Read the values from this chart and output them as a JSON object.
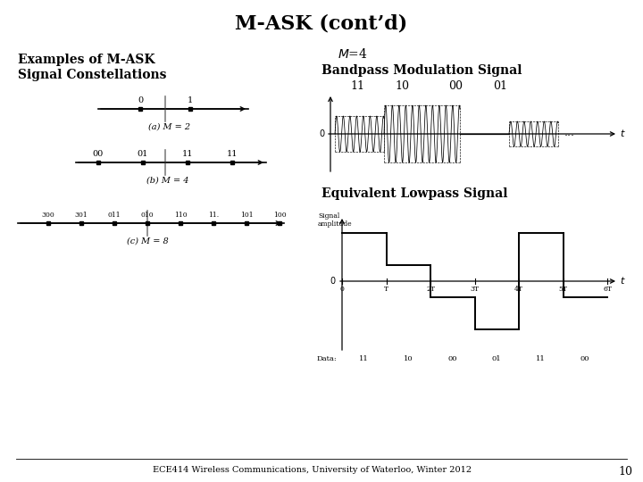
{
  "title": "M-ASK (cont’d)",
  "left_label_line1": "Examples of M-ASK",
  "left_label_line2": "Signal Constellations",
  "m4_label": "M=4",
  "bandpass_title": "Bandpass Modulation Signal",
  "bandpass_labels": [
    "11",
    "10",
    "00",
    "01"
  ],
  "equiv_title": "Equivalent Lowpass Signal",
  "footer": "ECE414 Wireless Communications, University of Waterloo, Winter 2012",
  "page_num": "10",
  "bg_color": "#ffffff",
  "text_color": "#000000",
  "constellation_m2_label": "(a) M = 2",
  "constellation_m4_label": "(b) M = 4",
  "constellation_m8_label": "(c) M = 8",
  "m2_labels": [
    "0",
    "1"
  ],
  "m4_labels": [
    "00",
    "01",
    "11",
    "11"
  ],
  "m8_labels": [
    "300",
    "301",
    "011",
    "010",
    "110",
    "11.",
    "101",
    "100"
  ],
  "lp_seq": [
    "11",
    "10",
    "00",
    "01",
    "11",
    "00"
  ],
  "lp_ticks": [
    "0",
    "T",
    "2T",
    "3T",
    "4T",
    "5T",
    "6T"
  ]
}
